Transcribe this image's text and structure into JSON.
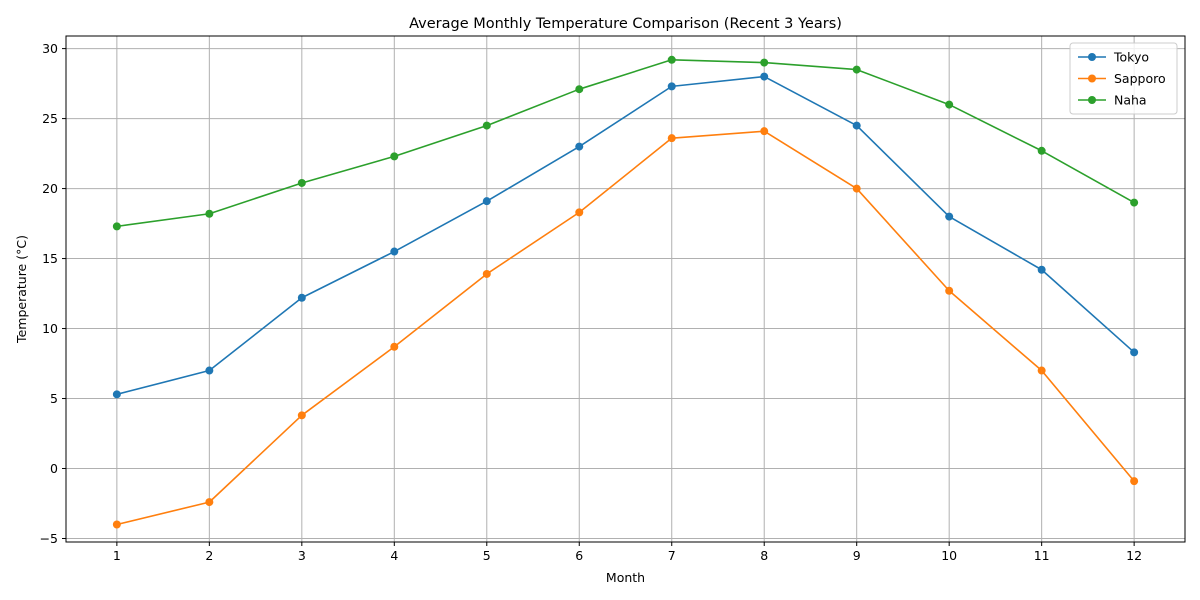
{
  "chart_data": {
    "type": "line",
    "title": "Average Monthly Temperature Comparison (Recent 3 Years)",
    "xlabel": "Month",
    "ylabel": "Temperature (°C)",
    "x": [
      1,
      2,
      3,
      4,
      5,
      6,
      7,
      8,
      9,
      10,
      11,
      12
    ],
    "xlim": [
      0.45,
      12.55
    ],
    "ylim": [
      -5.25,
      30.9
    ],
    "yticks": [
      -5,
      0,
      5,
      10,
      15,
      20,
      25,
      30
    ],
    "grid": true,
    "legend_position": "top-right",
    "series": [
      {
        "name": "Tokyo",
        "color": "#1f77b4",
        "marker": "circle",
        "values": [
          5.3,
          7.0,
          12.2,
          15.5,
          19.1,
          23.0,
          27.3,
          28.0,
          24.5,
          18.0,
          14.2,
          8.3
        ]
      },
      {
        "name": "Sapporo",
        "color": "#ff7f0e",
        "marker": "circle",
        "values": [
          -4.0,
          -2.4,
          3.8,
          8.7,
          13.9,
          18.3,
          23.6,
          24.1,
          20.0,
          12.7,
          7.0,
          -0.9
        ]
      },
      {
        "name": "Naha",
        "color": "#2ca02c",
        "marker": "circle",
        "values": [
          17.3,
          18.2,
          20.4,
          22.3,
          24.5,
          27.1,
          29.2,
          29.0,
          28.5,
          26.0,
          22.7,
          19.0
        ]
      }
    ]
  }
}
